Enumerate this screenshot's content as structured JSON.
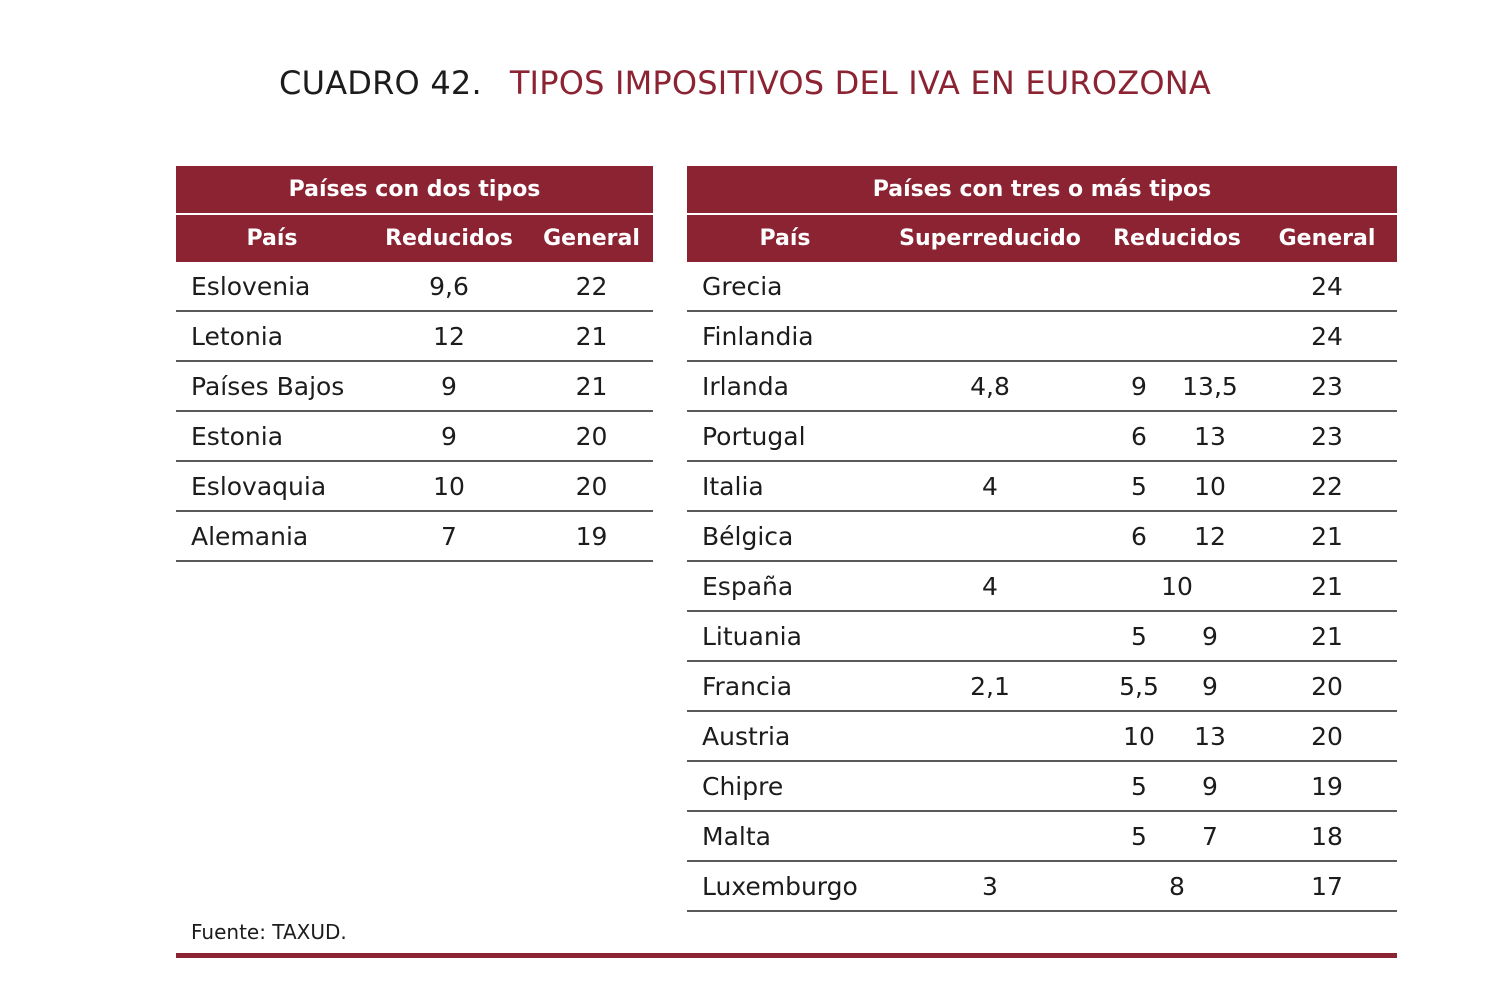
{
  "title": {
    "label": "CUADRO 42.",
    "text": "TIPOS IMPOSITIVOS DEL IVA EN EUROZONA"
  },
  "left_table": {
    "group_header": "Países con dos tipos",
    "columns": [
      "País",
      "Reducidos",
      "General"
    ],
    "rows": [
      {
        "pais": "Eslovenia",
        "reducidos": "9,6",
        "general": "22"
      },
      {
        "pais": "Letonia",
        "reducidos": "12",
        "general": "21"
      },
      {
        "pais": "Países Bajos",
        "reducidos": "9",
        "general": "21"
      },
      {
        "pais": "Estonia",
        "reducidos": "9",
        "general": "20"
      },
      {
        "pais": "Eslovaquia",
        "reducidos": "10",
        "general": "20"
      },
      {
        "pais": "Alemania",
        "reducidos": "7",
        "general": "19"
      }
    ]
  },
  "right_table": {
    "group_header": "Países con tres o más tipos",
    "columns": [
      "País",
      "Superreducido",
      "Reducidos",
      "General"
    ],
    "rows": [
      {
        "pais": "Grecia",
        "superreducido": "",
        "reducidos": [],
        "general": "24"
      },
      {
        "pais": "Finlandia",
        "superreducido": "",
        "reducidos": [],
        "general": "24"
      },
      {
        "pais": "Irlanda",
        "superreducido": "4,8",
        "reducidos": [
          "9",
          "13,5"
        ],
        "general": "23"
      },
      {
        "pais": "Portugal",
        "superreducido": "",
        "reducidos": [
          "6",
          "13"
        ],
        "general": "23"
      },
      {
        "pais": "Italia",
        "superreducido": "4",
        "reducidos": [
          "5",
          "10"
        ],
        "general": "22"
      },
      {
        "pais": "Bélgica",
        "superreducido": "",
        "reducidos": [
          "6",
          "12"
        ],
        "general": "21"
      },
      {
        "pais": "España",
        "superreducido": "4",
        "reducidos": [
          "10"
        ],
        "general": "21"
      },
      {
        "pais": "Lituania",
        "superreducido": "",
        "reducidos": [
          "5",
          "9"
        ],
        "general": "21"
      },
      {
        "pais": "Francia",
        "superreducido": "2,1",
        "reducidos": [
          "5,5",
          "9"
        ],
        "general": "20"
      },
      {
        "pais": "Austria",
        "superreducido": "",
        "reducidos": [
          "10",
          "13"
        ],
        "general": "20"
      },
      {
        "pais": "Chipre",
        "superreducido": "",
        "reducidos": [
          "5",
          "9"
        ],
        "general": "19"
      },
      {
        "pais": "Malta",
        "superreducido": "",
        "reducidos": [
          "5",
          "7"
        ],
        "general": "18"
      },
      {
        "pais": "Luxemburgo",
        "superreducido": "3",
        "reducidos": [
          "8"
        ],
        "general": "17"
      }
    ]
  },
  "source": "Fuente: TAXUD.",
  "colors": {
    "accent": "#8c2332",
    "text": "#1c1c1c",
    "rule": "#5a5a5a"
  }
}
